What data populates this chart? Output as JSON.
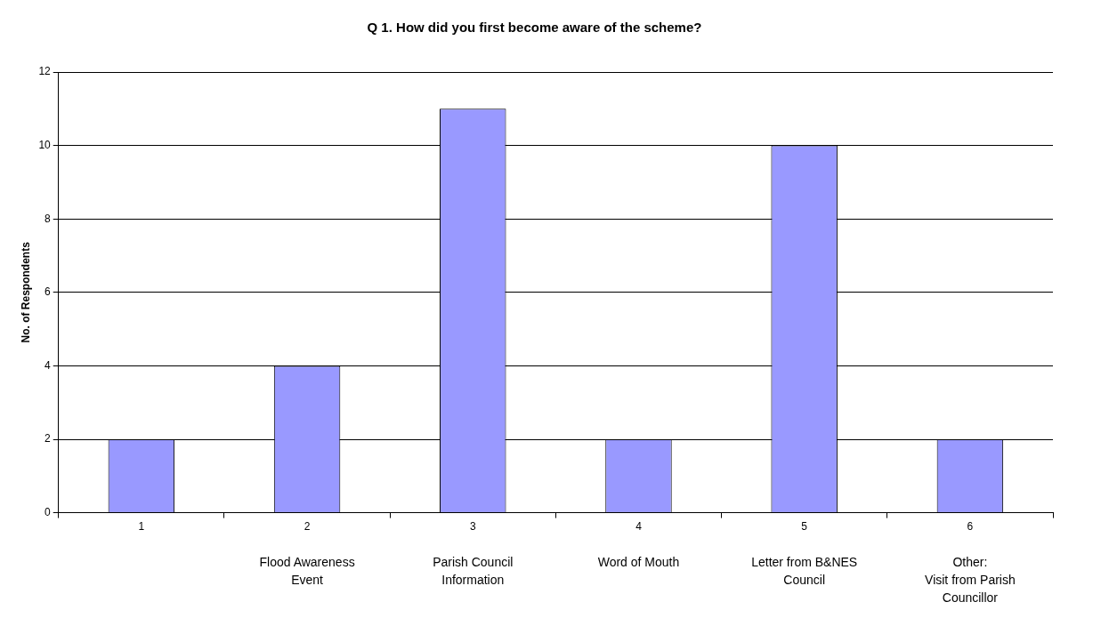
{
  "chart_data": {
    "type": "bar",
    "title": "Q 1. How did you first become aware of the scheme?",
    "ylabel": "No. of Respondents",
    "categories": [
      "1",
      "2",
      "3",
      "4",
      "5",
      "6"
    ],
    "values": [
      2,
      4,
      11,
      2,
      10,
      2
    ],
    "color": "#9999ff",
    "ylim": [
      0,
      12
    ],
    "yticks": [
      0,
      2,
      4,
      6,
      8,
      10,
      12
    ],
    "grid": "y",
    "legend": false,
    "annotations": [
      "Flood Awareness\nEvent",
      "Parish Council\nInformation",
      "Word of Mouth",
      "Letter from B&NES\nCouncil",
      "Other:\nVisit from Parish\nCouncillor"
    ]
  }
}
